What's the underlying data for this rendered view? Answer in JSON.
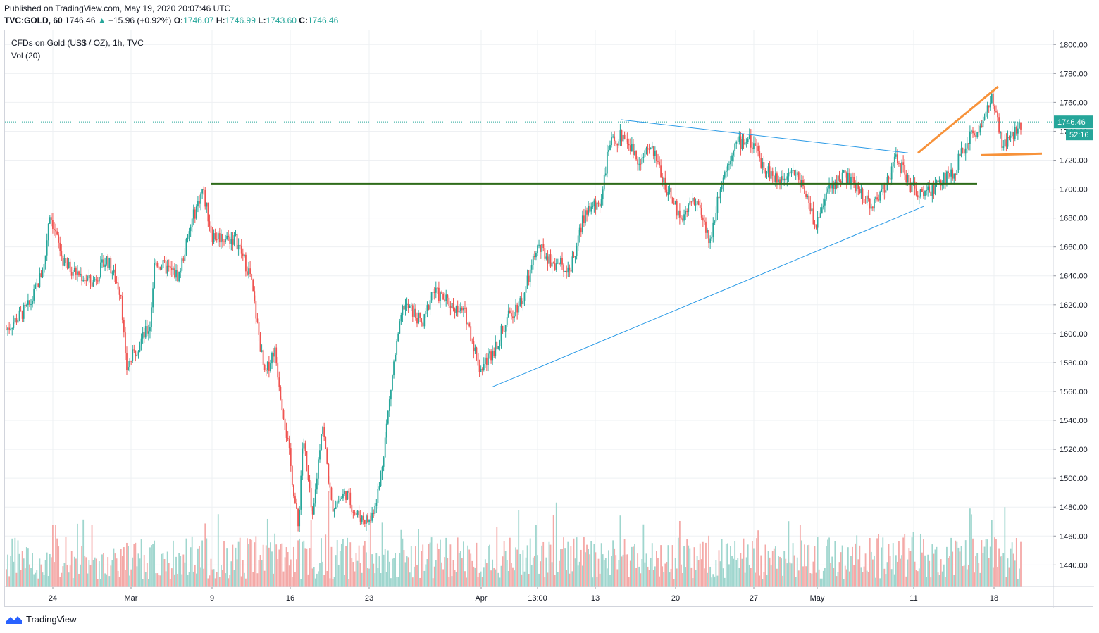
{
  "header": {
    "published": "Published on TradingView.com, May 19, 2020 20:07:46 UTC",
    "symbol": "TVC:GOLD, 60",
    "last": "1746.46",
    "change": "+15.96 (+0.92%)",
    "open_label": "O:",
    "open": "1746.07",
    "high_label": "H:",
    "high": "1746.99",
    "low_label": "L:",
    "low": "1743.60",
    "close_label": "C:",
    "close": "1746.46"
  },
  "legend": {
    "title": "CFDs on Gold (US$ / OZ), 1h, TVC",
    "volume": "Vol (20)"
  },
  "price_tag": {
    "value": "1746.46",
    "countdown": "52:16"
  },
  "footer": {
    "brand": "TradingView"
  },
  "colors": {
    "up": "#26a69a",
    "down": "#ef5350",
    "vol_up": "#9fd6ce",
    "vol_down": "#f4a9a7",
    "support": "#2e6b1a",
    "wedge": "#2a9ae6",
    "breakout": "#f7923a",
    "last_line": "#26a69a"
  },
  "chart_data": {
    "type": "candlestick",
    "symbol": "TVC:GOLD",
    "interval": "1h",
    "x_tick_labels": [
      "24",
      "Mar",
      "9",
      "16",
      "23",
      "Apr",
      "13:00",
      "13",
      "20",
      "27",
      "May",
      "11",
      "18"
    ],
    "y_axis": {
      "min": 1420,
      "max": 1805,
      "ticks": [
        1440,
        1460,
        1480,
        1500,
        1520,
        1540,
        1560,
        1580,
        1600,
        1620,
        1640,
        1660,
        1680,
        1700,
        1720,
        1740,
        1760,
        1780,
        1800
      ]
    },
    "last_price": 1746.46,
    "price_path_closes": [
      {
        "x": 0.0,
        "y": 1603
      },
      {
        "x": 2.5,
        "y": 1620
      },
      {
        "x": 4.0,
        "y": 1648
      },
      {
        "x": 4.5,
        "y": 1685
      },
      {
        "x": 6.0,
        "y": 1648
      },
      {
        "x": 9.0,
        "y": 1635
      },
      {
        "x": 10.5,
        "y": 1652
      },
      {
        "x": 12.0,
        "y": 1628
      },
      {
        "x": 12.5,
        "y": 1575
      },
      {
        "x": 14.0,
        "y": 1595
      },
      {
        "x": 15.0,
        "y": 1605
      },
      {
        "x": 15.5,
        "y": 1650
      },
      {
        "x": 18.0,
        "y": 1640
      },
      {
        "x": 19.5,
        "y": 1680
      },
      {
        "x": 20.5,
        "y": 1700
      },
      {
        "x": 21.5,
        "y": 1668
      },
      {
        "x": 24.0,
        "y": 1665
      },
      {
        "x": 25.5,
        "y": 1640
      },
      {
        "x": 27.0,
        "y": 1570
      },
      {
        "x": 28.0,
        "y": 1590
      },
      {
        "x": 29.5,
        "y": 1520
      },
      {
        "x": 30.5,
        "y": 1465
      },
      {
        "x": 31.0,
        "y": 1530
      },
      {
        "x": 32.0,
        "y": 1470
      },
      {
        "x": 33.0,
        "y": 1540
      },
      {
        "x": 34.0,
        "y": 1480
      },
      {
        "x": 35.5,
        "y": 1490
      },
      {
        "x": 36.5,
        "y": 1475
      },
      {
        "x": 38.0,
        "y": 1470
      },
      {
        "x": 39.0,
        "y": 1495
      },
      {
        "x": 40.5,
        "y": 1580
      },
      {
        "x": 41.5,
        "y": 1620
      },
      {
        "x": 42.5,
        "y": 1615
      },
      {
        "x": 43.5,
        "y": 1605
      },
      {
        "x": 44.5,
        "y": 1630
      },
      {
        "x": 46.5,
        "y": 1620
      },
      {
        "x": 48.0,
        "y": 1613
      },
      {
        "x": 49.5,
        "y": 1575
      },
      {
        "x": 51.0,
        "y": 1590
      },
      {
        "x": 52.5,
        "y": 1612
      },
      {
        "x": 54.0,
        "y": 1625
      },
      {
        "x": 55.5,
        "y": 1660
      },
      {
        "x": 57.0,
        "y": 1650
      },
      {
        "x": 59.0,
        "y": 1645
      },
      {
        "x": 60.5,
        "y": 1685
      },
      {
        "x": 62.0,
        "y": 1690
      },
      {
        "x": 63.0,
        "y": 1730
      },
      {
        "x": 64.5,
        "y": 1738
      },
      {
        "x": 66.0,
        "y": 1720
      },
      {
        "x": 67.5,
        "y": 1728
      },
      {
        "x": 69.0,
        "y": 1700
      },
      {
        "x": 70.5,
        "y": 1680
      },
      {
        "x": 72.0,
        "y": 1695
      },
      {
        "x": 73.5,
        "y": 1662
      },
      {
        "x": 74.5,
        "y": 1700
      },
      {
        "x": 76.0,
        "y": 1730
      },
      {
        "x": 77.5,
        "y": 1735
      },
      {
        "x": 79.0,
        "y": 1718
      },
      {
        "x": 80.5,
        "y": 1705
      },
      {
        "x": 82.0,
        "y": 1715
      },
      {
        "x": 83.5,
        "y": 1700
      },
      {
        "x": 84.5,
        "y": 1675
      },
      {
        "x": 86.0,
        "y": 1700
      },
      {
        "x": 87.5,
        "y": 1710
      },
      {
        "x": 89.0,
        "y": 1700
      },
      {
        "x": 90.5,
        "y": 1688
      },
      {
        "x": 92.0,
        "y": 1705
      },
      {
        "x": 93.0,
        "y": 1722
      },
      {
        "x": 94.5,
        "y": 1702
      },
      {
        "x": 96.0,
        "y": 1695
      },
      {
        "x": 97.5,
        "y": 1705
      },
      {
        "x": 99.0,
        "y": 1712
      },
      {
        "x": 100.5,
        "y": 1735
      },
      {
        "x": 102.0,
        "y": 1745
      },
      {
        "x": 103.0,
        "y": 1765
      },
      {
        "x": 104.0,
        "y": 1730
      },
      {
        "x": 105.0,
        "y": 1735
      },
      {
        "x": 106.0,
        "y": 1746
      }
    ],
    "x_domain": [
      0,
      106
    ],
    "volume_max": 1
  }
}
